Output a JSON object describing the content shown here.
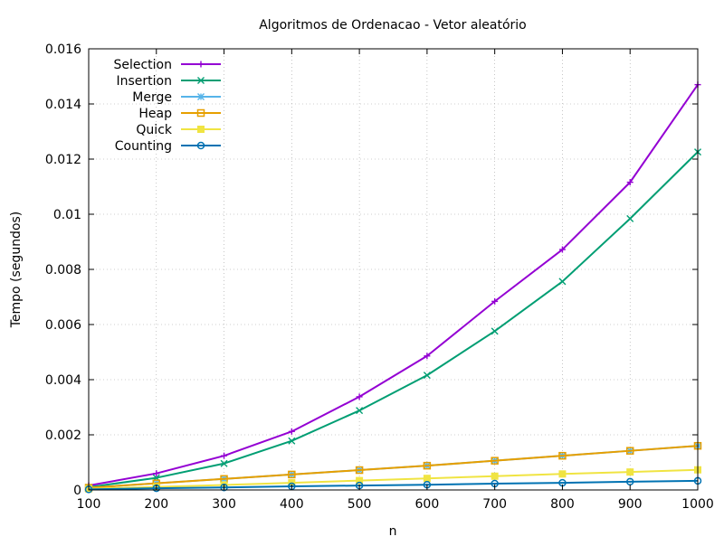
{
  "chart_data": {
    "type": "line",
    "title": "Algoritmos de Ordenacao - Vetor aleatório",
    "xlabel": "n",
    "ylabel": "Tempo (segundos)",
    "xlim": [
      100,
      1000
    ],
    "ylim": [
      0,
      0.016
    ],
    "x_ticks": [
      100,
      200,
      300,
      400,
      500,
      600,
      700,
      800,
      900,
      1000
    ],
    "x_tick_labels": [
      "100",
      "200",
      "300",
      "400",
      "500",
      "600",
      "700",
      "800",
      "900",
      "1000"
    ],
    "y_ticks": [
      0,
      0.002,
      0.004,
      0.006,
      0.008,
      0.01,
      0.012,
      0.014,
      0.016
    ],
    "y_tick_labels": [
      "0",
      "0.002",
      "0.004",
      "0.006",
      "0.008",
      "0.01",
      "0.012",
      "0.014",
      "0.016"
    ],
    "grid": true,
    "legend_position": "top-left",
    "x": [
      100,
      200,
      300,
      400,
      500,
      600,
      700,
      800,
      900,
      1000
    ],
    "series": [
      {
        "name": "Selection",
        "color": "#9400d3",
        "marker": "plus",
        "values": [
          0.00016,
          0.0006,
          0.00124,
          0.00212,
          0.00338,
          0.00486,
          0.00684,
          0.00872,
          0.01116,
          0.0147
        ]
      },
      {
        "name": "Insertion",
        "color": "#009e73",
        "marker": "cross",
        "values": [
          0.0001,
          0.00044,
          0.00096,
          0.00178,
          0.00288,
          0.00416,
          0.00576,
          0.00756,
          0.00984,
          0.01226
        ]
      },
      {
        "name": "Merge",
        "color": "#56b4e9",
        "marker": "star",
        "values": [
          8e-05,
          0.00024,
          0.0004,
          0.00056,
          0.00072,
          0.00088,
          0.00106,
          0.00124,
          0.00142,
          0.0016
        ]
      },
      {
        "name": "Heap",
        "color": "#e69f00",
        "marker": "square",
        "values": [
          8e-05,
          0.00024,
          0.0004,
          0.00056,
          0.00072,
          0.00088,
          0.00106,
          0.00124,
          0.00142,
          0.0016
        ]
      },
      {
        "name": "Quick",
        "color": "#f0e442",
        "marker": "filled-square",
        "values": [
          4e-05,
          0.00011,
          0.00018,
          0.00026,
          0.00034,
          0.00042,
          0.0005,
          0.00058,
          0.00065,
          0.00073
        ]
      },
      {
        "name": "Counting",
        "color": "#0072b2",
        "marker": "circle",
        "values": [
          2e-05,
          6e-05,
          9e-05,
          0.00013,
          0.00016,
          0.00019,
          0.00023,
          0.00026,
          0.0003,
          0.00033
        ]
      }
    ]
  }
}
